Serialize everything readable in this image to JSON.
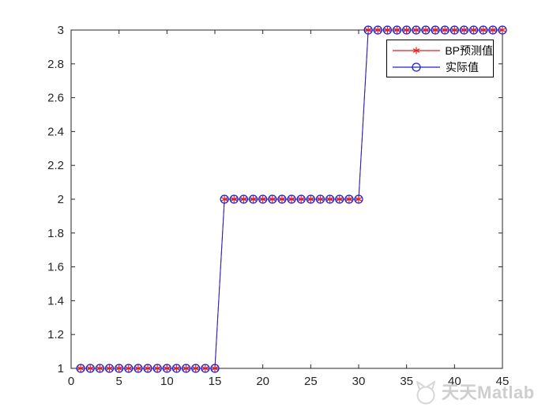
{
  "watermark": {
    "text": "天天Matlab"
  },
  "colors": {
    "background": "#ffffff",
    "axis": "#262626",
    "legend_border": "#000000",
    "watermark_gray": "#cecece",
    "predicted_red": "#e32020",
    "actual_blue": "#2121cc"
  },
  "chart_data": {
    "type": "line",
    "title": "",
    "xlabel": "",
    "ylabel": "",
    "grid": false,
    "legend_position": "inside-top-right",
    "xlim": [
      0,
      45
    ],
    "ylim": [
      1,
      3
    ],
    "xticks": [
      0,
      5,
      10,
      15,
      20,
      25,
      30,
      35,
      40,
      45
    ],
    "yticks": [
      1,
      1.2,
      1.4,
      1.6,
      1.8,
      2,
      2.2,
      2.4,
      2.6,
      2.8,
      3
    ],
    "axis_color": "#262626",
    "x": [
      1,
      2,
      3,
      4,
      5,
      6,
      7,
      8,
      9,
      10,
      11,
      12,
      13,
      14,
      15,
      16,
      17,
      18,
      19,
      20,
      21,
      22,
      23,
      24,
      25,
      26,
      27,
      28,
      29,
      30,
      31,
      32,
      33,
      34,
      35,
      36,
      37,
      38,
      39,
      40,
      41,
      42,
      43,
      44,
      45
    ],
    "series": [
      {
        "name": "BP预测值",
        "color": "#e32020",
        "marker": "asterisk",
        "line": "solid",
        "values": [
          1,
          1,
          1,
          1,
          1,
          1,
          1,
          1,
          1,
          1,
          1,
          1,
          1,
          1,
          1,
          2,
          2,
          2,
          2,
          2,
          2,
          2,
          2,
          2,
          2,
          2,
          2,
          2,
          2,
          2,
          3,
          3,
          3,
          3,
          3,
          3,
          3,
          3,
          3,
          3,
          3,
          3,
          3,
          3,
          3
        ]
      },
      {
        "name": "实际值",
        "color": "#2121cc",
        "marker": "circle",
        "line": "solid",
        "values": [
          1,
          1,
          1,
          1,
          1,
          1,
          1,
          1,
          1,
          1,
          1,
          1,
          1,
          1,
          1,
          2,
          2,
          2,
          2,
          2,
          2,
          2,
          2,
          2,
          2,
          2,
          2,
          2,
          2,
          2,
          3,
          3,
          3,
          3,
          3,
          3,
          3,
          3,
          3,
          3,
          3,
          3,
          3,
          3,
          3
        ]
      }
    ]
  }
}
